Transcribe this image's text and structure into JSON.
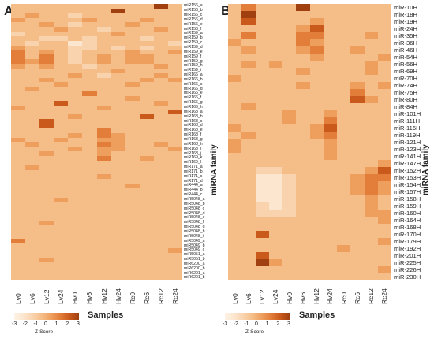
{
  "panels": [
    {
      "letter": "A",
      "row_labels": [
        "miR156_a",
        "miR156_b",
        "miR156_c",
        "miR156_d",
        "miR156_e",
        "miR156_f",
        "miR159_a",
        "miR159_b",
        "miR159_c",
        "miR159_d",
        "miR159_e",
        "miR159_f",
        "miR159_g",
        "miR159_h",
        "miR159_i",
        "miR166_a",
        "miR166_b",
        "miR166_c",
        "miR166_d",
        "miR166_e",
        "miR166_f",
        "miR166_g",
        "miR166_h",
        "miR168_a",
        "miR168_b",
        "miR168_c",
        "miR168_d",
        "miR168_e",
        "miR168_f",
        "miR168_g",
        "miR168_h",
        "miR168_i",
        "miR168_j",
        "miR169_k",
        "miR169_l",
        "miR171_a",
        "miR171_b",
        "miR171_c",
        "miR171_d",
        "miR444_a",
        "miR444_b",
        "miR444_c",
        "miR5048_a",
        "miR5048_b",
        "miR5048_c",
        "miR5048_d",
        "miR5048_e",
        "miR5048_f",
        "miR5048_g",
        "miR5048_h",
        "miR5048_i",
        "miR5049_a",
        "miR5049_b",
        "miR5049_c",
        "miR5051_a",
        "miR5051_b",
        "miR6200_a",
        "miR6200_b",
        "miR6201_a",
        "miR6201_b"
      ],
      "col_labels": [
        "Lv0",
        "Lv6",
        "Lv12",
        "Lv24",
        "Hv0",
        "Hv6",
        "Hv12",
        "Hv24",
        "Rc0",
        "Rc6",
        "Rc12",
        "Rc24"
      ],
      "family_label": "miRNA family"
    },
    {
      "letter": "B",
      "row_labels": [
        "miR-10H",
        "miR-18H",
        "miR-19H",
        "miR-24H",
        "miR-35H",
        "miR-36H",
        "miR-46H",
        "miR-54H",
        "miR-56H",
        "miR-69H",
        "miR-70H",
        "miR-74H",
        "miR-75H",
        "miR-80H",
        "miR-84H",
        "miR-101H",
        "miR-111H",
        "miR-116H",
        "miR-119H",
        "miR-121H",
        "miR-123H",
        "miR-141H",
        "miR-147H",
        "miR-152H",
        "miR-153H",
        "miR-154H",
        "miR-157H",
        "miR-158H",
        "miR-159H",
        "miR-160H",
        "miR-164H",
        "miR-168H",
        "miR-170H",
        "miR-179H",
        "miR-192H",
        "miR-201H",
        "miR-225H",
        "miR-226H",
        "miR-230H"
      ],
      "col_labels": [
        "Lv0",
        "Lv6",
        "Lv12",
        "Lv24",
        "Hv0",
        "Hv6",
        "Hv12",
        "Hv24",
        "Rc0",
        "Rc6",
        "Rc12",
        "Rc24"
      ],
      "family_label": "miRNA family"
    }
  ],
  "legend": {
    "ticks": [
      "-3",
      "-2",
      "-1",
      "0",
      "1",
      "2",
      "3"
    ],
    "title": "Z-Score",
    "samples_label": "Samples",
    "colors": [
      "#fdf3e6",
      "#fce6cf",
      "#f9d3ad",
      "#f5bd87",
      "#ee9f5e",
      "#e27d3a",
      "#c95a1c",
      "#a04010"
    ]
  },
  "palette": [
    "#fdf3e6",
    "#fce6cf",
    "#f9d3ad",
    "#f5bd87",
    "#ee9f5e",
    "#e27d3a",
    "#c95a1c",
    "#a04010"
  ],
  "heatmap_A_levels": [
    [
      3,
      3,
      3,
      3,
      3,
      3,
      3,
      3,
      3,
      3,
      7,
      3
    ],
    [
      3,
      3,
      3,
      3,
      3,
      3,
      3,
      7,
      3,
      3,
      3,
      3
    ],
    [
      3,
      4,
      3,
      3,
      2,
      3,
      3,
      3,
      3,
      3,
      3,
      3
    ],
    [
      4,
      3,
      3,
      3,
      3,
      4,
      3,
      3,
      3,
      4,
      3,
      3
    ],
    [
      3,
      3,
      4,
      3,
      2,
      3,
      3,
      3,
      4,
      3,
      3,
      3
    ],
    [
      3,
      3,
      3,
      4,
      3,
      3,
      2,
      3,
      3,
      3,
      4,
      3
    ],
    [
      2,
      3,
      3,
      3,
      3,
      3,
      3,
      4,
      3,
      3,
      3,
      3
    ],
    [
      3,
      3,
      2,
      2,
      3,
      2,
      3,
      3,
      3,
      2,
      3,
      3
    ],
    [
      3,
      2,
      3,
      3,
      1,
      2,
      3,
      3,
      3,
      3,
      3,
      2
    ],
    [
      4,
      3,
      3,
      3,
      2,
      2,
      3,
      2,
      3,
      2,
      3,
      3
    ],
    [
      5,
      3,
      4,
      3,
      2,
      3,
      3,
      3,
      4,
      3,
      3,
      4
    ],
    [
      5,
      3,
      5,
      3,
      2,
      3,
      4,
      3,
      4,
      4,
      3,
      3
    ],
    [
      5,
      4,
      5,
      3,
      2,
      3,
      4,
      3,
      4,
      4,
      3,
      3
    ],
    [
      4,
      3,
      4,
      3,
      3,
      2,
      3,
      3,
      3,
      3,
      4,
      3
    ],
    [
      3,
      3,
      3,
      3,
      3,
      3,
      3,
      4,
      3,
      3,
      3,
      3
    ],
    [
      3,
      3,
      3,
      3,
      4,
      3,
      2,
      3,
      3,
      3,
      4,
      3
    ],
    [
      3,
      3,
      4,
      3,
      3,
      3,
      3,
      3,
      3,
      4,
      3,
      4
    ],
    [
      3,
      3,
      3,
      4,
      3,
      3,
      3,
      3,
      4,
      3,
      3,
      3
    ],
    [
      3,
      4,
      3,
      3,
      3,
      3,
      3,
      3,
      3,
      3,
      3,
      3
    ],
    [
      3,
      3,
      3,
      3,
      3,
      5,
      3,
      3,
      3,
      3,
      3,
      3
    ],
    [
      3,
      3,
      3,
      3,
      3,
      3,
      3,
      3,
      4,
      3,
      3,
      3
    ],
    [
      3,
      3,
      3,
      6,
      3,
      3,
      3,
      3,
      3,
      3,
      4,
      3
    ],
    [
      4,
      3,
      3,
      3,
      3,
      3,
      4,
      3,
      3,
      3,
      3,
      3
    ],
    [
      3,
      3,
      3,
      3,
      3,
      3,
      3,
      3,
      3,
      3,
      3,
      6
    ],
    [
      3,
      3,
      3,
      3,
      4,
      3,
      3,
      3,
      3,
      6,
      3,
      3
    ],
    [
      3,
      3,
      6,
      3,
      3,
      3,
      3,
      3,
      3,
      3,
      3,
      3
    ],
    [
      3,
      3,
      6,
      3,
      3,
      3,
      3,
      3,
      3,
      3,
      3,
      3
    ],
    [
      3,
      3,
      3,
      3,
      3,
      3,
      5,
      3,
      3,
      3,
      3,
      3
    ],
    [
      3,
      3,
      3,
      3,
      4,
      3,
      5,
      4,
      3,
      3,
      3,
      3
    ],
    [
      4,
      3,
      3,
      4,
      3,
      3,
      4,
      4,
      3,
      3,
      3,
      3
    ],
    [
      3,
      4,
      3,
      3,
      3,
      3,
      5,
      4,
      3,
      3,
      4,
      3
    ],
    [
      3,
      3,
      3,
      3,
      4,
      3,
      4,
      4,
      3,
      3,
      3,
      4
    ],
    [
      3,
      3,
      4,
      3,
      3,
      3,
      4,
      3,
      3,
      3,
      3,
      3
    ],
    [
      3,
      3,
      3,
      3,
      3,
      3,
      5,
      3,
      3,
      4,
      3,
      3
    ],
    [
      3,
      3,
      3,
      3,
      3,
      3,
      3,
      3,
      3,
      3,
      3,
      3
    ],
    [
      3,
      4,
      3,
      3,
      3,
      3,
      3,
      3,
      3,
      3,
      3,
      3
    ],
    [
      3,
      3,
      3,
      3,
      3,
      3,
      3,
      3,
      3,
      3,
      3,
      3
    ],
    [
      3,
      3,
      3,
      3,
      3,
      3,
      4,
      3,
      3,
      3,
      3,
      3
    ],
    [
      3,
      3,
      3,
      3,
      3,
      3,
      3,
      3,
      3,
      3,
      3,
      3
    ],
    [
      3,
      3,
      3,
      3,
      3,
      3,
      3,
      3,
      4,
      3,
      3,
      3
    ],
    [
      3,
      3,
      3,
      3,
      3,
      3,
      3,
      3,
      3,
      3,
      3,
      3
    ],
    [
      3,
      3,
      3,
      3,
      3,
      3,
      3,
      3,
      3,
      3,
      3,
      3
    ],
    [
      3,
      3,
      3,
      4,
      3,
      3,
      3,
      3,
      3,
      3,
      3,
      3
    ],
    [
      3,
      3,
      3,
      3,
      3,
      3,
      3,
      3,
      3,
      3,
      3,
      3
    ],
    [
      3,
      3,
      3,
      3,
      3,
      3,
      3,
      3,
      3,
      3,
      3,
      3
    ],
    [
      3,
      3,
      3,
      3,
      3,
      3,
      3,
      3,
      3,
      3,
      3,
      3
    ],
    [
      3,
      3,
      3,
      3,
      3,
      3,
      3,
      3,
      3,
      3,
      3,
      3
    ],
    [
      3,
      3,
      4,
      3,
      3,
      3,
      3,
      3,
      3,
      3,
      3,
      3
    ],
    [
      3,
      3,
      3,
      3,
      3,
      3,
      3,
      3,
      3,
      3,
      3,
      3
    ],
    [
      3,
      3,
      3,
      3,
      3,
      3,
      3,
      3,
      3,
      3,
      3,
      3
    ],
    [
      3,
      3,
      3,
      3,
      3,
      3,
      3,
      3,
      3,
      3,
      3,
      3
    ],
    [
      5,
      3,
      3,
      3,
      3,
      3,
      3,
      3,
      3,
      3,
      3,
      3
    ],
    [
      3,
      3,
      3,
      3,
      3,
      3,
      3,
      3,
      3,
      3,
      3,
      3
    ],
    [
      3,
      3,
      3,
      3,
      3,
      3,
      3,
      3,
      3,
      3,
      3,
      4
    ],
    [
      3,
      3,
      3,
      3,
      3,
      3,
      3,
      3,
      3,
      3,
      3,
      3
    ],
    [
      3,
      3,
      4,
      3,
      3,
      3,
      3,
      3,
      3,
      3,
      3,
      3
    ],
    [
      3,
      3,
      3,
      3,
      3,
      3,
      3,
      3,
      3,
      3,
      3,
      3
    ],
    [
      3,
      3,
      3,
      3,
      3,
      3,
      3,
      3,
      3,
      3,
      3,
      3
    ],
    [
      3,
      3,
      3,
      3,
      3,
      3,
      3,
      3,
      3,
      3,
      3,
      3
    ],
    [
      3,
      3,
      3,
      3,
      3,
      3,
      3,
      3,
      3,
      3,
      3,
      3
    ]
  ],
  "heatmap_B_levels": [
    [
      3,
      5,
      3,
      3,
      3,
      7,
      3,
      3,
      3,
      3,
      3,
      3
    ],
    [
      3,
      7,
      3,
      3,
      3,
      3,
      3,
      3,
      3,
      3,
      3,
      3
    ],
    [
      3,
      6,
      3,
      3,
      3,
      3,
      4,
      3,
      3,
      3,
      3,
      3
    ],
    [
      3,
      3,
      3,
      3,
      3,
      4,
      6,
      3,
      3,
      3,
      3,
      3
    ],
    [
      3,
      5,
      3,
      3,
      3,
      5,
      5,
      3,
      3,
      3,
      4,
      3
    ],
    [
      4,
      3,
      3,
      3,
      3,
      5,
      4,
      3,
      3,
      3,
      3,
      3
    ],
    [
      3,
      4,
      3,
      3,
      3,
      4,
      5,
      3,
      3,
      4,
      3,
      3
    ],
    [
      3,
      3,
      3,
      3,
      3,
      3,
      4,
      3,
      3,
      3,
      3,
      4
    ],
    [
      3,
      4,
      3,
      4,
      3,
      3,
      3,
      3,
      3,
      3,
      4,
      3
    ],
    [
      3,
      3,
      3,
      3,
      3,
      4,
      3,
      3,
      3,
      3,
      4,
      3
    ],
    [
      4,
      3,
      3,
      3,
      3,
      3,
      3,
      3,
      3,
      3,
      3,
      3
    ],
    [
      3,
      3,
      3,
      3,
      3,
      4,
      3,
      3,
      3,
      4,
      3,
      4
    ],
    [
      3,
      3,
      3,
      3,
      3,
      3,
      3,
      3,
      3,
      5,
      3,
      3
    ],
    [
      3,
      3,
      3,
      3,
      3,
      3,
      3,
      3,
      3,
      6,
      4,
      3
    ],
    [
      3,
      4,
      3,
      3,
      3,
      3,
      3,
      3,
      3,
      3,
      3,
      3
    ],
    [
      3,
      3,
      3,
      3,
      4,
      3,
      3,
      4,
      3,
      3,
      3,
      3
    ],
    [
      3,
      3,
      3,
      3,
      4,
      3,
      3,
      5,
      3,
      3,
      3,
      3
    ],
    [
      4,
      3,
      3,
      3,
      3,
      3,
      4,
      6,
      3,
      3,
      3,
      3
    ],
    [
      3,
      4,
      3,
      3,
      3,
      3,
      4,
      5,
      3,
      3,
      3,
      3
    ],
    [
      4,
      3,
      3,
      3,
      3,
      3,
      3,
      4,
      3,
      3,
      3,
      3
    ],
    [
      4,
      3,
      3,
      3,
      3,
      3,
      3,
      4,
      3,
      3,
      3,
      3
    ],
    [
      3,
      3,
      3,
      3,
      3,
      3,
      3,
      4,
      3,
      3,
      3,
      3
    ],
    [
      3,
      3,
      3,
      3,
      3,
      3,
      3,
      3,
      3,
      3,
      3,
      4
    ],
    [
      3,
      3,
      2,
      2,
      3,
      3,
      3,
      3,
      3,
      3,
      4,
      6
    ],
    [
      3,
      3,
      1,
      1,
      2,
      3,
      3,
      3,
      3,
      4,
      5,
      5
    ],
    [
      3,
      3,
      1,
      1,
      2,
      3,
      3,
      3,
      3,
      4,
      5,
      4
    ],
    [
      3,
      3,
      1,
      1,
      2,
      3,
      3,
      3,
      3,
      4,
      5,
      4
    ],
    [
      3,
      3,
      1,
      1,
      2,
      3,
      3,
      3,
      3,
      3,
      4,
      3
    ],
    [
      3,
      3,
      2,
      1,
      2,
      3,
      3,
      3,
      3,
      3,
      4,
      3
    ],
    [
      3,
      3,
      2,
      2,
      2,
      3,
      3,
      3,
      3,
      3,
      4,
      4
    ],
    [
      3,
      3,
      3,
      3,
      3,
      3,
      3,
      3,
      3,
      3,
      3,
      4
    ],
    [
      3,
      3,
      3,
      3,
      3,
      3,
      3,
      3,
      3,
      3,
      3,
      3
    ],
    [
      3,
      3,
      6,
      3,
      3,
      3,
      3,
      3,
      3,
      3,
      3,
      3
    ],
    [
      3,
      3,
      3,
      3,
      3,
      3,
      3,
      3,
      3,
      3,
      3,
      4
    ],
    [
      3,
      3,
      3,
      3,
      3,
      3,
      3,
      3,
      4,
      3,
      3,
      3
    ],
    [
      3,
      3,
      6,
      3,
      3,
      3,
      3,
      3,
      3,
      3,
      3,
      3
    ],
    [
      3,
      3,
      7,
      4,
      3,
      3,
      3,
      3,
      3,
      3,
      3,
      3
    ],
    [
      3,
      3,
      3,
      3,
      3,
      3,
      3,
      3,
      3,
      3,
      3,
      4
    ],
    [
      3,
      3,
      3,
      3,
      3,
      3,
      3,
      3,
      3,
      3,
      3,
      3
    ]
  ]
}
